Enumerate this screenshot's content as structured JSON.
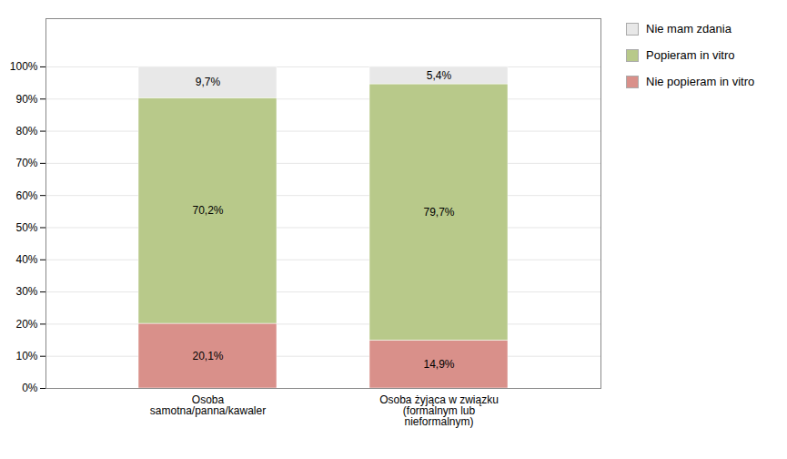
{
  "chart_data": {
    "type": "bar",
    "stacked": true,
    "categories": [
      "Osoba\nsamotna/panna/kawaler",
      "Osoba żyjąca w związku\n(formalnym lub\nnieformalnym)"
    ],
    "series": [
      {
        "name": "Nie popieram in vitro",
        "color": "#d9908a",
        "values": [
          20.1,
          14.9
        ],
        "value_labels": [
          "20,1%",
          "14,9%"
        ]
      },
      {
        "name": "Popieram in vitro",
        "color": "#b8c98a",
        "values": [
          70.2,
          79.7
        ],
        "value_labels": [
          "70,2%",
          "79,7%"
        ]
      },
      {
        "name": "Nie mam zdania",
        "color": "#e8e8e8",
        "values": [
          9.7,
          5.4
        ],
        "value_labels": [
          "9,7%",
          "5,4%"
        ]
      }
    ],
    "ylim": [
      0,
      115
    ],
    "yticks": [
      {
        "value": 0,
        "label": "0%"
      },
      {
        "value": 10,
        "label": "10%"
      },
      {
        "value": 20,
        "label": "20%"
      },
      {
        "value": 30,
        "label": "30%"
      },
      {
        "value": 40,
        "label": "40%"
      },
      {
        "value": 50,
        "label": "50%"
      },
      {
        "value": 60,
        "label": "60%"
      },
      {
        "value": 70,
        "label": "70%"
      },
      {
        "value": 80,
        "label": "80%"
      },
      {
        "value": 90,
        "label": "90%"
      },
      {
        "value": 100,
        "label": "100%"
      }
    ],
    "grid": true,
    "data_labels": true,
    "legend": "right"
  }
}
